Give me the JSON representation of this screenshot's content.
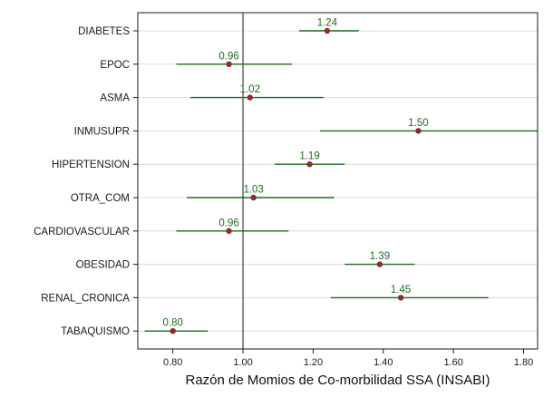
{
  "chart_data": {
    "type": "forest",
    "title": "",
    "xlabel": "Razón de Momios de Co-morbilidad SSA (INSABI)",
    "ylabel": "",
    "xlim": [
      0.7,
      1.84
    ],
    "xticks": [
      0.8,
      1.0,
      1.2,
      1.4,
      1.6,
      1.8
    ],
    "xtick_labels": [
      "0.80",
      "1.00",
      "1.20",
      "1.40",
      "1.60",
      "1.80"
    ],
    "reference_line": 1.0,
    "grid": "horizontal",
    "legend": "none",
    "colors": {
      "point": "#8b2d2d",
      "interval": "#1f6b1f",
      "value_label": "#1f6b1f",
      "reference": "#1a1a1a",
      "grid": "#dcdcdc"
    },
    "rows": [
      {
        "label": "DIABETES",
        "estimate": 1.24,
        "estimate_label": "1.24",
        "ci_low": 1.16,
        "ci_high": 1.33
      },
      {
        "label": "EPOC",
        "estimate": 0.96,
        "estimate_label": "0.96",
        "ci_low": 0.81,
        "ci_high": 1.14
      },
      {
        "label": "ASMA",
        "estimate": 1.02,
        "estimate_label": "1.02",
        "ci_low": 0.85,
        "ci_high": 1.23
      },
      {
        "label": "INMUSUPR",
        "estimate": 1.5,
        "estimate_label": "1.50",
        "ci_low": 1.22,
        "ci_high": 1.84
      },
      {
        "label": "HIPERTENSION",
        "estimate": 1.19,
        "estimate_label": "1.19",
        "ci_low": 1.09,
        "ci_high": 1.29
      },
      {
        "label": "OTRA_COM",
        "estimate": 1.03,
        "estimate_label": "1.03",
        "ci_low": 0.84,
        "ci_high": 1.26
      },
      {
        "label": "CARDIOVASCULAR",
        "estimate": 0.96,
        "estimate_label": "0.96",
        "ci_low": 0.81,
        "ci_high": 1.13
      },
      {
        "label": "OBESIDAD",
        "estimate": 1.39,
        "estimate_label": "1.39",
        "ci_low": 1.29,
        "ci_high": 1.49
      },
      {
        "label": "RENAL_CRONICA",
        "estimate": 1.45,
        "estimate_label": "1.45",
        "ci_low": 1.25,
        "ci_high": 1.7
      },
      {
        "label": "TABAQUISMO",
        "estimate": 0.8,
        "estimate_label": "0.80",
        "ci_low": 0.72,
        "ci_high": 0.9
      }
    ]
  }
}
